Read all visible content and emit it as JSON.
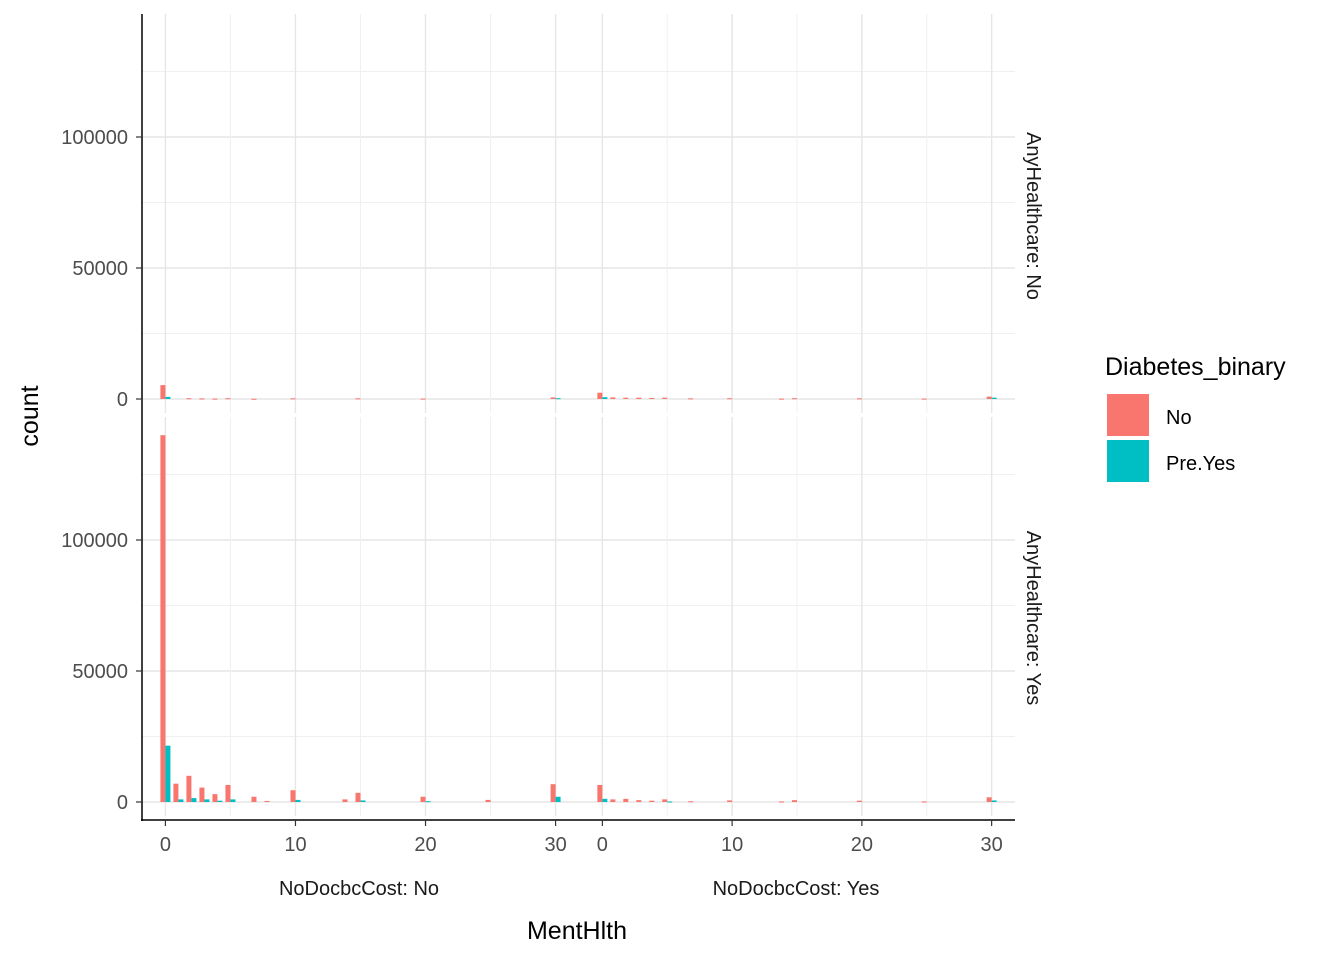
{
  "chart_data": {
    "type": "bar",
    "title": "",
    "xlabel": "MentHlth",
    "ylabel": "count",
    "x_ticks": [
      "0",
      "10",
      "20",
      "30"
    ],
    "y_ticks": [
      "0",
      "50000",
      "100000"
    ],
    "xlim": [
      -1.8,
      31.8
    ],
    "ylim": [
      -6000,
      140000
    ],
    "grid": true,
    "legend": {
      "title": "Diabetes_binary",
      "position": "right",
      "entries": [
        {
          "label": "No",
          "color": "#F8766D"
        },
        {
          "label": "Pre.Yes",
          "color": "#00BFC4"
        }
      ]
    },
    "facet_cols": [
      "NoDocbcCost: No",
      "NoDocbcCost: Yes"
    ],
    "facet_rows": [
      "AnyHealthcare: No",
      "AnyHealthcare: Yes"
    ],
    "panels": [
      {
        "row": 0,
        "col": 0,
        "no": [
          [
            0,
            5300
          ],
          [
            2,
            300
          ],
          [
            3,
            200
          ],
          [
            4,
            150
          ],
          [
            5,
            300
          ],
          [
            7,
            100
          ],
          [
            10,
            250
          ],
          [
            15,
            250
          ],
          [
            20,
            150
          ],
          [
            30,
            600
          ]
        ],
        "yes": [
          [
            0,
            800
          ],
          [
            30,
            300
          ]
        ]
      },
      {
        "row": 0,
        "col": 1,
        "no": [
          [
            0,
            2400
          ],
          [
            1,
            600
          ],
          [
            2,
            500
          ],
          [
            3,
            500
          ],
          [
            4,
            400
          ],
          [
            5,
            500
          ],
          [
            7,
            250
          ],
          [
            10,
            300
          ],
          [
            14,
            150
          ],
          [
            15,
            300
          ],
          [
            20,
            250
          ],
          [
            25,
            150
          ],
          [
            30,
            900
          ]
        ],
        "yes": [
          [
            0,
            700
          ],
          [
            30,
            500
          ]
        ]
      },
      {
        "row": 1,
        "col": 0,
        "no": [
          [
            0,
            140000
          ],
          [
            1,
            7000
          ],
          [
            2,
            10000
          ],
          [
            3,
            5500
          ],
          [
            4,
            3000
          ],
          [
            5,
            6500
          ],
          [
            7,
            2000
          ],
          [
            8,
            400
          ],
          [
            10,
            4500
          ],
          [
            14,
            1000
          ],
          [
            15,
            3500
          ],
          [
            20,
            2000
          ],
          [
            25,
            800
          ],
          [
            30,
            6800
          ]
        ],
        "yes": [
          [
            0,
            21500
          ],
          [
            1,
            1000
          ],
          [
            2,
            1500
          ],
          [
            3,
            1000
          ],
          [
            4,
            500
          ],
          [
            5,
            1000
          ],
          [
            10,
            800
          ],
          [
            15,
            600
          ],
          [
            20,
            300
          ],
          [
            30,
            2000
          ]
        ]
      },
      {
        "row": 1,
        "col": 1,
        "no": [
          [
            0,
            6500
          ],
          [
            1,
            1000
          ],
          [
            2,
            1200
          ],
          [
            3,
            700
          ],
          [
            4,
            500
          ],
          [
            5,
            1000
          ],
          [
            7,
            300
          ],
          [
            10,
            600
          ],
          [
            14,
            200
          ],
          [
            15,
            700
          ],
          [
            20,
            500
          ],
          [
            25,
            200
          ],
          [
            30,
            1800
          ]
        ],
        "yes": [
          [
            0,
            1200
          ],
          [
            5,
            200
          ],
          [
            30,
            600
          ]
        ]
      }
    ]
  }
}
